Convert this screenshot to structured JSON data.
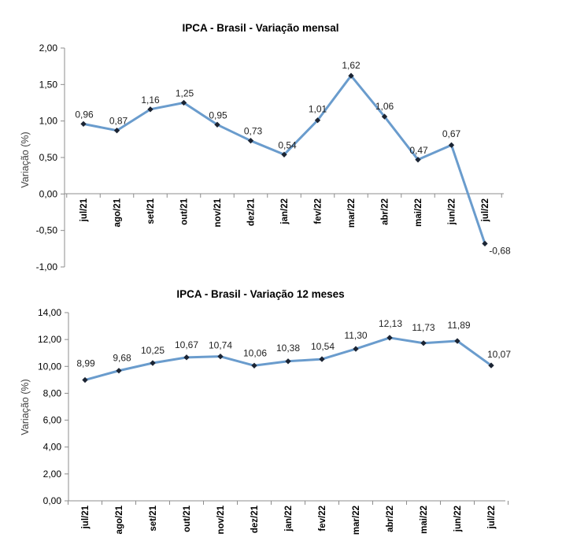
{
  "chart_data": [
    {
      "type": "line",
      "title": "IPCA - Brasil - Variação mensal",
      "xlabel": "",
      "ylabel": "Variação (%)",
      "categories": [
        "jul/21",
        "ago/21",
        "set/21",
        "out/21",
        "nov/21",
        "dez/21",
        "jan/22",
        "fev/22",
        "mar/22",
        "abr/22",
        "mai/22",
        "jun/22",
        "jul/22"
      ],
      "series": [
        {
          "values": [
            0.96,
            0.87,
            1.16,
            1.25,
            0.95,
            0.73,
            0.54,
            1.01,
            1.62,
            1.06,
            0.47,
            0.67,
            -0.68
          ]
        }
      ],
      "data_labels": [
        "0,96",
        "0,87",
        "1,16",
        "1,25",
        "0,95",
        "0,73",
        "0,54",
        "1,01",
        "1,62",
        "1,06",
        "0,47",
        "0,67",
        "-0,68"
      ],
      "ylim": [
        -1.0,
        2.0
      ],
      "yticks": [
        2.0,
        1.5,
        1.0,
        0.5,
        0.0,
        -0.5,
        -1.0
      ],
      "ytick_labels": [
        "2,00",
        "1,50",
        "1,00",
        "0,50",
        "0,00",
        "-0,50",
        "-1,00"
      ],
      "grid": false,
      "legend": "none",
      "line_color": "#6a9ccd",
      "marker_color": "#1b2433"
    },
    {
      "type": "line",
      "title": "IPCA - Brasil - Variação 12 meses",
      "xlabel": "",
      "ylabel": "Variação (%)",
      "categories": [
        "jul/21",
        "ago/21",
        "set/21",
        "out/21",
        "nov/21",
        "dez/21",
        "jan/22",
        "fev/22",
        "mar/22",
        "abr/22",
        "mai/22",
        "jun/22",
        "jul/22"
      ],
      "series": [
        {
          "values": [
            8.99,
            9.68,
            10.25,
            10.67,
            10.74,
            10.06,
            10.38,
            10.54,
            11.3,
            12.13,
            11.73,
            11.89,
            10.07
          ]
        }
      ],
      "data_labels": [
        "8,99",
        "9,68",
        "10,25",
        "10,67",
        "10,74",
        "10,06",
        "10,38",
        "10,54",
        "11,30",
        "12,13",
        "11,73",
        "11,89",
        "10,07"
      ],
      "ylim": [
        0,
        14
      ],
      "yticks": [
        14,
        12,
        10,
        8,
        6,
        4,
        2,
        0
      ],
      "ytick_labels": [
        "14,00",
        "12,00",
        "10,00",
        "8,00",
        "6,00",
        "4,00",
        "2,00",
        "0,00"
      ],
      "grid": false,
      "legend": "none",
      "line_color": "#6a9ccd",
      "marker_color": "#1b2433"
    }
  ]
}
